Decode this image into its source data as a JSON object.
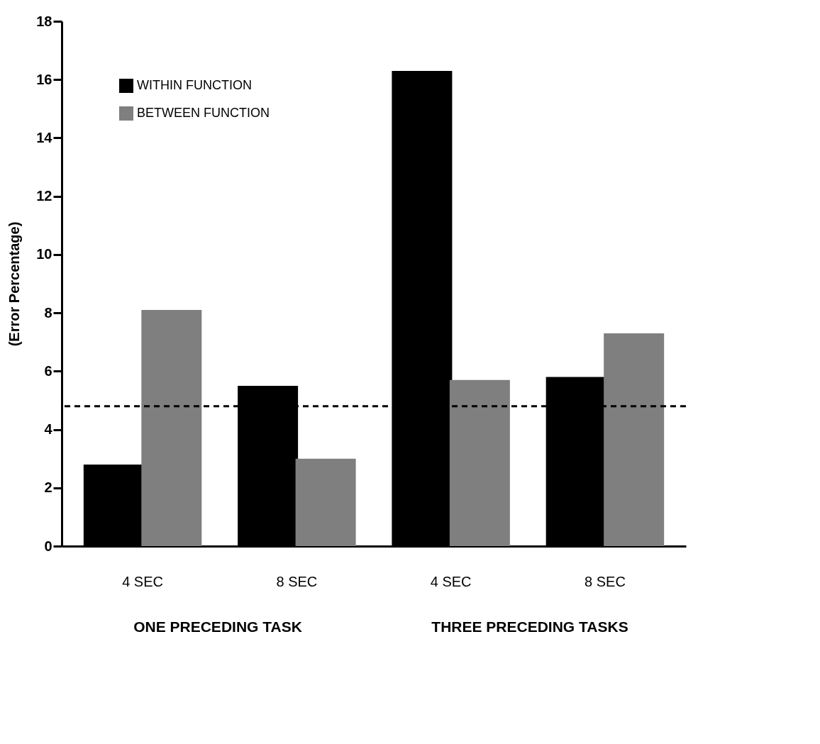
{
  "chart_data": {
    "type": "bar",
    "ylabel": "(Error  Percentage)",
    "categories": [
      "4 SEC",
      "8 SEC",
      "4 SEC",
      "8 SEC"
    ],
    "series": [
      {
        "name": "WITHIN FUNCTION",
        "color": "#000000",
        "values": [
          2.8,
          5.5,
          16.3,
          5.8
        ]
      },
      {
        "name": "BETWEEN FUNCTION",
        "color": "#7f7f7f",
        "values": [
          8.1,
          3.0,
          5.7,
          7.3
        ]
      }
    ],
    "ylim": [
      0,
      18
    ],
    "yticks": [
      0,
      2,
      4,
      6,
      8,
      10,
      12,
      14,
      16,
      18
    ],
    "grid": false,
    "legend": "top left",
    "ref_lines": [
      {
        "axis": "y",
        "value": 4.8,
        "line_style": "dashed",
        "color": "#000000"
      }
    ],
    "annotations": [
      "ONE PRECEDING TASK",
      "THREE PRECEDING TASKS"
    ]
  }
}
